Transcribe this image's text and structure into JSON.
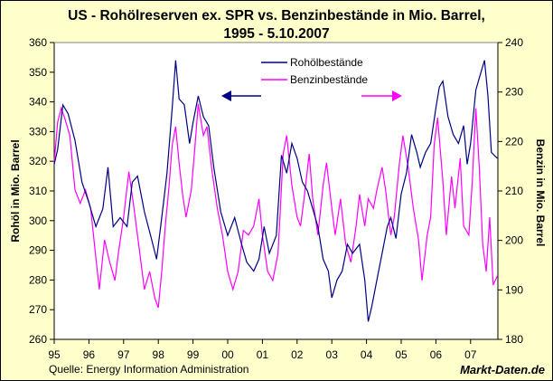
{
  "chart_data": {
    "type": "line",
    "title_line1": "US - Rohölreserven ex. SPR  vs. Benzinbestände in Mio. Barrel,",
    "title_line2": "1995 - 5.10.2007",
    "ylabel_left": "Rohöl in Mio. Barrel",
    "ylabel_right": "Benzin in Mio. Barrel",
    "xlim": [
      1995,
      2007.95
    ],
    "ylim_left": [
      260,
      360
    ],
    "ylim_right": [
      180,
      240
    ],
    "yticks_left": [
      "360",
      "350",
      "340",
      "330",
      "320",
      "310",
      "300",
      "290",
      "280",
      "270",
      "260"
    ],
    "yticks_right": [
      "240",
      "230",
      "220",
      "210",
      "200",
      "190",
      "180"
    ],
    "xticks": [
      "95",
      "96",
      "97",
      "98",
      "99",
      "00",
      "01",
      "02",
      "03",
      "04",
      "05",
      "06",
      "07"
    ],
    "legend_position": "top-center",
    "grid": false,
    "source": "Quelle: Energy Information Administration",
    "brand": "Markt-Daten.de",
    "colors": {
      "crude": "#000080",
      "gasoline": "#ff00ff",
      "background": "#ffffcc",
      "plot": "#ffffff"
    },
    "series": [
      {
        "name": "Rohölbestände",
        "axis": "left",
        "x": [
          1995.0,
          1995.1,
          1995.25,
          1995.4,
          1995.6,
          1995.8,
          1996.0,
          1996.2,
          1996.4,
          1996.55,
          1996.7,
          1996.9,
          1997.1,
          1997.25,
          1997.4,
          1997.6,
          1997.8,
          1997.95,
          1998.1,
          1998.25,
          1998.4,
          1998.5,
          1998.6,
          1998.75,
          1998.9,
          1999.0,
          1999.15,
          1999.3,
          1999.45,
          1999.6,
          1999.8,
          2000.0,
          2000.2,
          2000.4,
          2000.55,
          2000.75,
          2000.9,
          2001.05,
          2001.2,
          2001.4,
          2001.55,
          2001.7,
          2001.85,
          2002.0,
          2002.15,
          2002.3,
          2002.45,
          2002.6,
          2002.75,
          2002.9,
          2003.0,
          2003.15,
          2003.3,
          2003.45,
          2003.6,
          2003.8,
          2003.95,
          2004.05,
          2004.15,
          2004.3,
          2004.45,
          2004.6,
          2004.7,
          2004.85,
          2005.0,
          2005.15,
          2005.3,
          2005.45,
          2005.55,
          2005.7,
          2005.85,
          2006.0,
          2006.1,
          2006.2,
          2006.35,
          2006.5,
          2006.65,
          2006.8,
          2006.9,
          2007.0,
          2007.15,
          2007.3,
          2007.4,
          2007.5,
          2007.6,
          2007.77
        ],
        "values": [
          319,
          324,
          339,
          336,
          327,
          313,
          306,
          298,
          304,
          318,
          298,
          301,
          298,
          313,
          315,
          303,
          294,
          287,
          301,
          316,
          338,
          354,
          341,
          339,
          326,
          333,
          342,
          335,
          332,
          318,
          303,
          295,
          301,
          292,
          286,
          283,
          287,
          298,
          289,
          295,
          322,
          316,
          326,
          321,
          313,
          310,
          304,
          298,
          287,
          283,
          274,
          280,
          283,
          292,
          289,
          292,
          280,
          266,
          271,
          280,
          289,
          298,
          301,
          294,
          309,
          316,
          329,
          323,
          318,
          323,
          326,
          338,
          345,
          347,
          335,
          329,
          326,
          332,
          319,
          326,
          344,
          350,
          354,
          342,
          323,
          321
        ]
      },
      {
        "name": "Benzinbestände",
        "axis": "right",
        "x": [
          1995.0,
          1995.1,
          1995.2,
          1995.3,
          1995.45,
          1995.6,
          1995.75,
          1995.9,
          1996.05,
          1996.2,
          1996.3,
          1996.45,
          1996.6,
          1996.75,
          1996.85,
          1997.0,
          1997.15,
          1997.3,
          1997.45,
          1997.6,
          1997.75,
          1997.9,
          1998.0,
          1998.1,
          1998.2,
          1998.3,
          1998.4,
          1998.5,
          1998.6,
          1998.7,
          1998.8,
          1998.95,
          1999.05,
          1999.15,
          1999.3,
          1999.4,
          1999.55,
          1999.7,
          1999.85,
          2000.0,
          2000.15,
          2000.3,
          2000.45,
          2000.6,
          2000.75,
          2000.9,
          2001.0,
          2001.15,
          2001.3,
          2001.45,
          2001.6,
          2001.7,
          2001.85,
          2002.0,
          2002.1,
          2002.2,
          2002.35,
          2002.45,
          2002.6,
          2002.75,
          2002.85,
          2003.0,
          2003.1,
          2003.25,
          2003.4,
          2003.55,
          2003.7,
          2003.8,
          2003.95,
          2004.05,
          2004.2,
          2004.3,
          2004.45,
          2004.55,
          2004.7,
          2004.8,
          2004.95,
          2005.05,
          2005.2,
          2005.35,
          2005.5,
          2005.6,
          2005.75,
          2005.85,
          2005.95,
          2006.05,
          2006.2,
          2006.3,
          2006.45,
          2006.55,
          2006.7,
          2006.8,
          2006.95,
          2007.05,
          2007.15,
          2007.25,
          2007.35,
          2007.45,
          2007.55,
          2007.65,
          2007.77
        ],
        "values": [
          215.7,
          223.9,
          226.7,
          224.8,
          221.2,
          210.2,
          207.5,
          210.2,
          206.5,
          196.5,
          190.1,
          200.1,
          195.6,
          191.9,
          197.4,
          204.7,
          213.9,
          206.5,
          198.3,
          190.1,
          193.7,
          188.3,
          186.4,
          193.7,
          202.9,
          210.2,
          219.3,
          223.0,
          215.7,
          209.3,
          204.7,
          210.2,
          218.4,
          227.6,
          221.2,
          223.0,
          213.9,
          206.5,
          201.1,
          193.7,
          190.1,
          193.7,
          202.0,
          201.1,
          202.9,
          208.4,
          201.1,
          193.7,
          191.9,
          197.4,
          217.5,
          221.2,
          211.1,
          204.7,
          202.9,
          208.4,
          217.5,
          208.4,
          201.1,
          211.1,
          215.7,
          206.5,
          201.1,
          208.4,
          199.2,
          195.6,
          202.9,
          209.3,
          202.9,
          208.4,
          206.5,
          210.2,
          214.8,
          210.2,
          201.1,
          204.7,
          215.7,
          221.2,
          214.8,
          206.5,
          200.1,
          191.9,
          201.1,
          204.7,
          219.3,
          224.8,
          212.0,
          201.1,
          212.9,
          206.5,
          216.6,
          202.9,
          201.1,
          212.0,
          226.7,
          214.8,
          199.2,
          193.7,
          204.7,
          191.0,
          192.8
        ]
      }
    ]
  }
}
